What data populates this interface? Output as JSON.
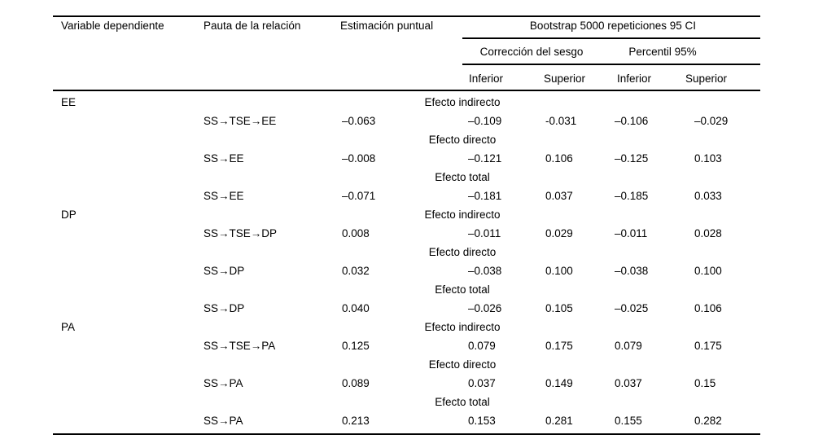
{
  "colors": {
    "background": "#ffffff",
    "text": "#000000",
    "rule": "#000000"
  },
  "table": {
    "headers": {
      "col_variable": "Variable dependiente",
      "col_pauta": "Pauta de la relación",
      "col_estimacion": "Estimación puntual",
      "bootstrap_span": "Bootstrap 5000 repeticiones 95 CI",
      "group_correccion": "Corrección del sesgo",
      "group_percentil": "Percentil 95%",
      "sub_bc_inferior": "Inferior",
      "sub_bc_superior": "Superior",
      "sub_pct_inferior": "Inferior",
      "sub_pct_superior": "Superior"
    },
    "rows": [
      {
        "type": "group",
        "variable": "EE",
        "label": "Efecto indirecto"
      },
      {
        "type": "data",
        "path": "SS→TSE→EE",
        "est": "–0.063",
        "bc_lo": "–0.109",
        "bc_hi": "-0.031",
        "pct_lo": "–0.106",
        "pct_hi": "–0.029"
      },
      {
        "type": "group",
        "variable": "",
        "label": "Efecto directo"
      },
      {
        "type": "data",
        "path": "SS→EE",
        "est": "–0.008",
        "bc_lo": "–0.121",
        "bc_hi": "0.106",
        "pct_lo": "–0.125",
        "pct_hi": "0.103"
      },
      {
        "type": "group",
        "variable": "",
        "label": "Efecto total"
      },
      {
        "type": "data",
        "path": "SS→EE",
        "est": "–0.071",
        "bc_lo": "–0.181",
        "bc_hi": "0.037",
        "pct_lo": "–0.185",
        "pct_hi": "0.033"
      },
      {
        "type": "group",
        "variable": "DP",
        "label": "Efecto indirecto"
      },
      {
        "type": "data",
        "path": "SS→TSE→DP",
        "est": "0.008",
        "bc_lo": "–0.011",
        "bc_hi": "0.029",
        "pct_lo": "–0.011",
        "pct_hi": "0.028"
      },
      {
        "type": "group",
        "variable": "",
        "label": "Efecto directo"
      },
      {
        "type": "data",
        "path": "SS→DP",
        "est": "0.032",
        "bc_lo": "–0.038",
        "bc_hi": "0.100",
        "pct_lo": "–0.038",
        "pct_hi": "0.100"
      },
      {
        "type": "group",
        "variable": "",
        "label": "Efecto total"
      },
      {
        "type": "data",
        "path": "SS→DP",
        "est": "0.040",
        "bc_lo": "–0.026",
        "bc_hi": "0.105",
        "pct_lo": "–0.025",
        "pct_hi": "0.106"
      },
      {
        "type": "group",
        "variable": "PA",
        "label": "Efecto indirecto"
      },
      {
        "type": "data",
        "path": "SS→TSE→PA",
        "est": "0.125",
        "bc_lo": "0.079",
        "bc_hi": "0.175",
        "pct_lo": "0.079",
        "pct_hi": "0.175"
      },
      {
        "type": "group",
        "variable": "",
        "label": "Efecto directo"
      },
      {
        "type": "data",
        "path": "SS→PA",
        "est": "0.089",
        "bc_lo": "0.037",
        "bc_hi": "0.149",
        "pct_lo": "0.037",
        "pct_hi": "0.15"
      },
      {
        "type": "group",
        "variable": "",
        "label": "Efecto total"
      },
      {
        "type": "data",
        "path": "SS→PA",
        "est": "0.213",
        "bc_lo": "0.153",
        "bc_hi": "0.281",
        "pct_lo": "0.155",
        "pct_hi": "0.282"
      }
    ]
  }
}
